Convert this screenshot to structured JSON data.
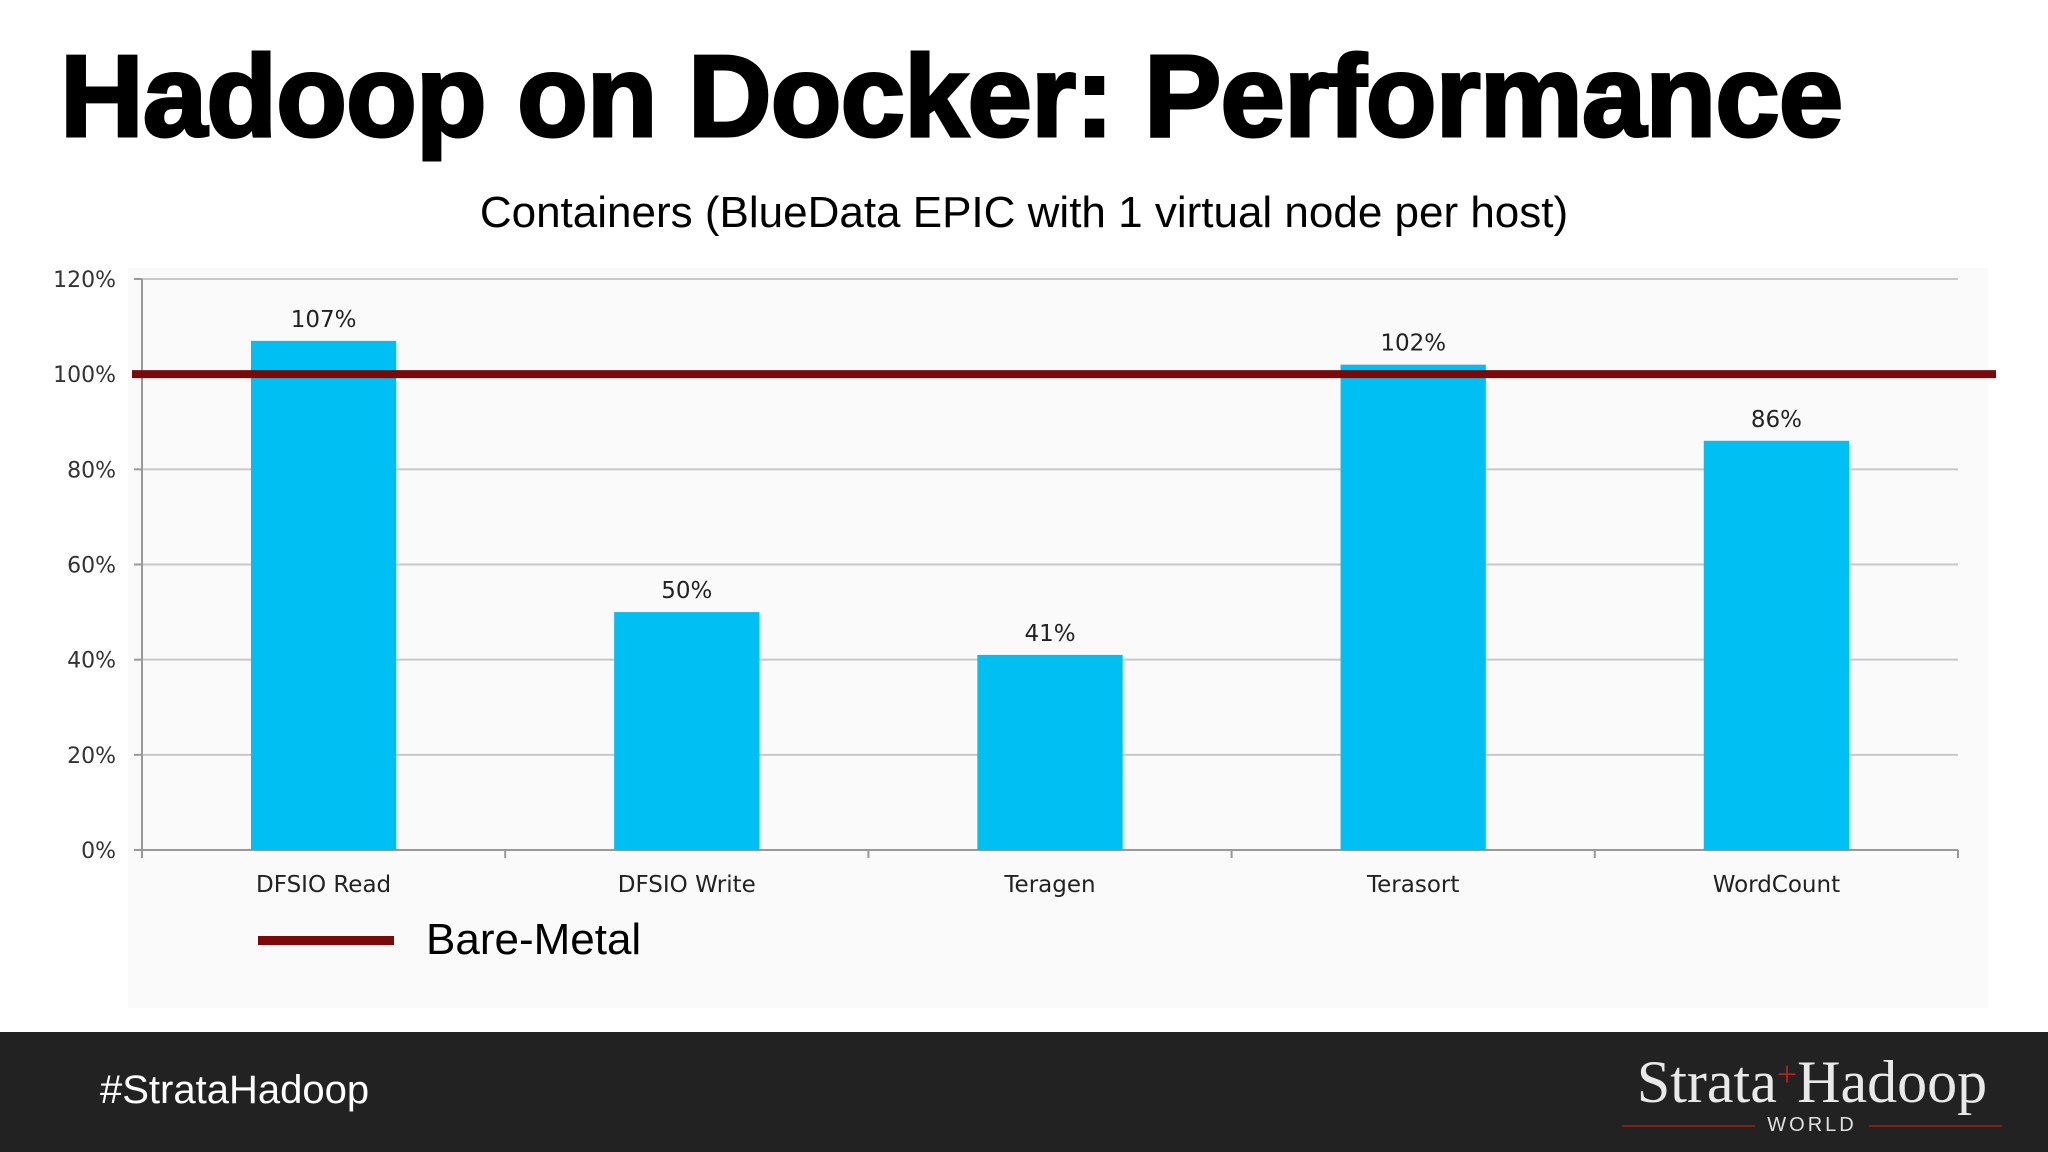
{
  "slide": {
    "title": "Hadoop on Docker: Performance"
  },
  "chart_data": {
    "type": "bar",
    "title": "Containers (BlueData EPIC with 1 virtual node per host)",
    "categories": [
      "DFSIO Read",
      "DFSIO Write",
      "Teragen",
      "Terasort",
      "WordCount"
    ],
    "values": [
      107,
      50,
      41,
      102,
      86
    ],
    "data_labels": [
      "107%",
      "50%",
      "41%",
      "102%",
      "86%"
    ],
    "ylim": [
      0,
      120
    ],
    "yticks": [
      0,
      20,
      40,
      60,
      80,
      100,
      120
    ],
    "ytick_labels": [
      "0%",
      "20%",
      "40%",
      "60%",
      "80%",
      "100%",
      "120%"
    ],
    "grid": true,
    "bar_color": "#00BFF2",
    "reference_line": {
      "name": "Bare-Metal",
      "value": 100,
      "color": "#7A0A0A"
    },
    "legend": {
      "position": "bottom-left",
      "entries": [
        "Bare-Metal"
      ]
    }
  },
  "footer": {
    "hashtag": "#StrataHadoop",
    "logo_main_left": "Strata",
    "logo_plus": "+",
    "logo_main_right": "Hadoop",
    "logo_sub": "WORLD",
    "background": "#222222"
  }
}
